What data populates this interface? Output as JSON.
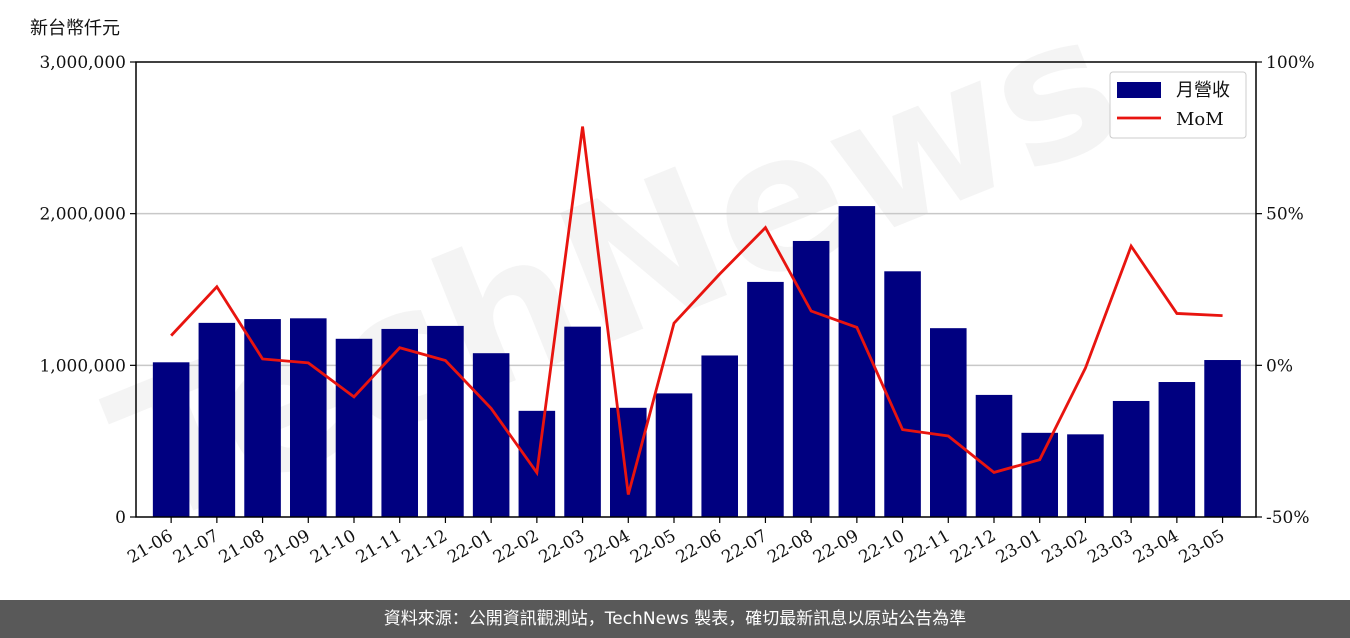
{
  "unit_label": "新台幣仟元",
  "footer": "資料來源：公開資訊觀測站，TechNews 製表，確切最新訊息以原站公告為準",
  "watermark": "TechNews",
  "colors": {
    "bar": "#000080",
    "line": "#e8140f",
    "grid": "#c8c8c8",
    "footer_bg": "#595959"
  },
  "chart_data": {
    "type": "bar",
    "categories": [
      "21-06",
      "21-07",
      "21-08",
      "21-09",
      "21-10",
      "21-11",
      "21-12",
      "22-01",
      "22-02",
      "22-03",
      "22-04",
      "22-05",
      "22-06",
      "22-07",
      "22-08",
      "22-09",
      "22-10",
      "22-11",
      "22-12",
      "23-01",
      "23-02",
      "23-03",
      "23-04",
      "23-05"
    ],
    "series": [
      {
        "name": "月營收",
        "type": "bar",
        "axis": "left",
        "values": [
          1020000,
          1280000,
          1305000,
          1310000,
          1175000,
          1240000,
          1260000,
          1080000,
          700000,
          1255000,
          720000,
          815000,
          1065000,
          1550000,
          1820000,
          2050000,
          1620000,
          1245000,
          805000,
          555000,
          545000,
          765000,
          890000,
          1035000
        ]
      },
      {
        "name": "MoM",
        "type": "line",
        "axis": "right",
        "values": [
          9.8,
          25.9,
          2.1,
          0.8,
          -10.4,
          5.8,
          1.6,
          -14.2,
          -35.4,
          78.7,
          -42.6,
          13.9,
          30.1,
          45.4,
          17.9,
          12.5,
          -21.2,
          -23.3,
          -35.3,
          -31.1,
          -0.9,
          39.3,
          17.1,
          16.4
        ]
      }
    ],
    "y_left": {
      "min": 0,
      "max": 3000000,
      "ticks": [
        0,
        1000000,
        2000000,
        3000000
      ],
      "tick_labels": [
        "0",
        "1,000,000",
        "2,000,000",
        "3,000,000"
      ]
    },
    "y_right": {
      "min": -50,
      "max": 100,
      "ticks": [
        -50,
        0,
        50,
        100
      ],
      "tick_labels": [
        "-50%",
        "0%",
        "50%",
        "100%"
      ]
    },
    "grid": "horizontal",
    "legend": "top-right"
  }
}
